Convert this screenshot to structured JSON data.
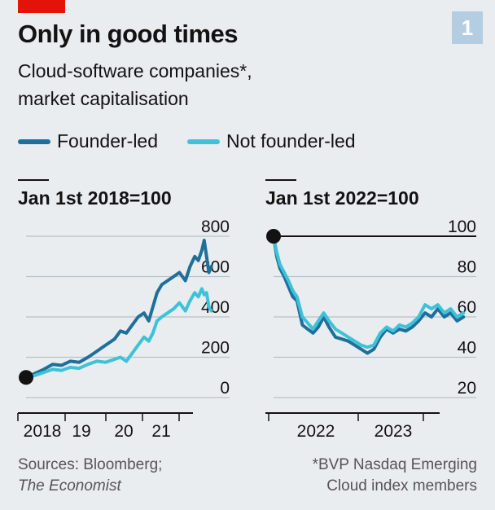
{
  "header": {
    "title": "Only in good times",
    "subtitle_line1": "Cloud-software companies*,",
    "subtitle_line2": "market capitalisation",
    "chart_number": "1"
  },
  "colors": {
    "founder_led": "#1f6f9a",
    "not_founder_led": "#3ec2d8",
    "accent_red": "#e3120b",
    "background": "#e9edf0"
  },
  "legend": [
    {
      "label": "Founder-led",
      "color": "#1f6f9a"
    },
    {
      "label": "Not founder-led",
      "color": "#3ec2d8"
    }
  ],
  "chart_data": [
    {
      "type": "line",
      "index_label": "Jan 1st 2018=100",
      "x_ticks": [
        "2018",
        "19",
        "20",
        "21"
      ],
      "x_range": [
        2018.0,
        2021.45
      ],
      "ylim": [
        0,
        800
      ],
      "y_ticks": [
        0,
        200,
        400,
        600,
        800
      ],
      "grid": true,
      "y_axis_side": "right",
      "start_marker": {
        "x": 2018.0,
        "y": 100
      },
      "series": [
        {
          "name": "Founder-led",
          "x": [
            2018.0,
            2018.15,
            2018.3,
            2018.45,
            2018.6,
            2018.75,
            2018.9,
            2019.05,
            2019.2,
            2019.35,
            2019.5,
            2019.6,
            2019.7,
            2019.8,
            2019.9,
            2020.0,
            2020.08,
            2020.15,
            2020.22,
            2020.3,
            2020.4,
            2020.5,
            2020.6,
            2020.7,
            2020.78,
            2020.86,
            2020.92,
            2020.98,
            2021.02,
            2021.06,
            2021.1,
            2021.14
          ],
          "y": [
            100,
            120,
            140,
            165,
            160,
            180,
            175,
            200,
            230,
            260,
            290,
            330,
            320,
            360,
            400,
            420,
            380,
            450,
            520,
            560,
            580,
            600,
            620,
            580,
            650,
            700,
            680,
            730,
            780,
            700,
            620,
            650
          ]
        },
        {
          "name": "Not founder-led",
          "x": [
            2018.0,
            2018.15,
            2018.3,
            2018.45,
            2018.6,
            2018.75,
            2018.9,
            2019.05,
            2019.2,
            2019.35,
            2019.5,
            2019.6,
            2019.7,
            2019.8,
            2019.9,
            2020.0,
            2020.08,
            2020.15,
            2020.22,
            2020.3,
            2020.4,
            2020.5,
            2020.6,
            2020.7,
            2020.78,
            2020.86,
            2020.92,
            2020.98,
            2021.02,
            2021.06,
            2021.1,
            2021.14
          ],
          "y": [
            100,
            110,
            125,
            140,
            135,
            150,
            145,
            165,
            180,
            175,
            190,
            200,
            180,
            220,
            260,
            300,
            280,
            320,
            380,
            400,
            420,
            440,
            470,
            430,
            480,
            520,
            500,
            540,
            510,
            520,
            450,
            430
          ]
        }
      ]
    },
    {
      "type": "line",
      "index_label": "Jan 1st 2022=100",
      "x_ticks": [
        "2022",
        "2023"
      ],
      "x_range": [
        2022.0,
        2023.9
      ],
      "ylim": [
        20,
        100
      ],
      "y_ticks": [
        20,
        40,
        60,
        80,
        100
      ],
      "grid": true,
      "y_axis_side": "right",
      "start_marker": {
        "x": 2022.0,
        "y": 100
      },
      "series": [
        {
          "name": "Founder-led",
          "x": [
            2022.0,
            2022.03,
            2022.06,
            2022.1,
            2022.14,
            2022.18,
            2022.22,
            2022.27,
            2022.32,
            2022.37,
            2022.42,
            2022.47,
            2022.52,
            2022.58,
            2022.64,
            2022.7,
            2022.76,
            2022.82,
            2022.88,
            2022.94,
            2023.0,
            2023.06,
            2023.12,
            2023.18,
            2023.24,
            2023.3,
            2023.36,
            2023.42,
            2023.48,
            2023.54,
            2023.6,
            2023.66,
            2023.72,
            2023.78
          ],
          "y": [
            100,
            90,
            84,
            80,
            75,
            70,
            68,
            56,
            54,
            52,
            55,
            60,
            55,
            50,
            49,
            48,
            46,
            44,
            42,
            44,
            50,
            54,
            52,
            54,
            53,
            55,
            58,
            62,
            60,
            64,
            60,
            62,
            58,
            60
          ]
        },
        {
          "name": "Not founder-led",
          "x": [
            2022.0,
            2022.03,
            2022.06,
            2022.1,
            2022.14,
            2022.18,
            2022.22,
            2022.27,
            2022.32,
            2022.37,
            2022.42,
            2022.47,
            2022.52,
            2022.58,
            2022.64,
            2022.7,
            2022.76,
            2022.82,
            2022.88,
            2022.94,
            2023.0,
            2023.06,
            2023.12,
            2023.18,
            2023.24,
            2023.3,
            2023.36,
            2023.42,
            2023.48,
            2023.54,
            2023.6,
            2023.66,
            2023.72,
            2023.78
          ],
          "y": [
            100,
            92,
            86,
            82,
            78,
            73,
            70,
            60,
            57,
            54,
            58,
            62,
            58,
            54,
            52,
            50,
            48,
            46,
            45,
            46,
            52,
            55,
            53,
            56,
            55,
            57,
            60,
            66,
            64,
            66,
            62,
            64,
            60,
            62
          ]
        }
      ]
    }
  ],
  "footer": {
    "sources_line1": "Sources: Bloomberg;",
    "sources_line2": "The Economist",
    "note_line1": "*BVP Nasdaq Emerging",
    "note_line2": "Cloud index members"
  }
}
